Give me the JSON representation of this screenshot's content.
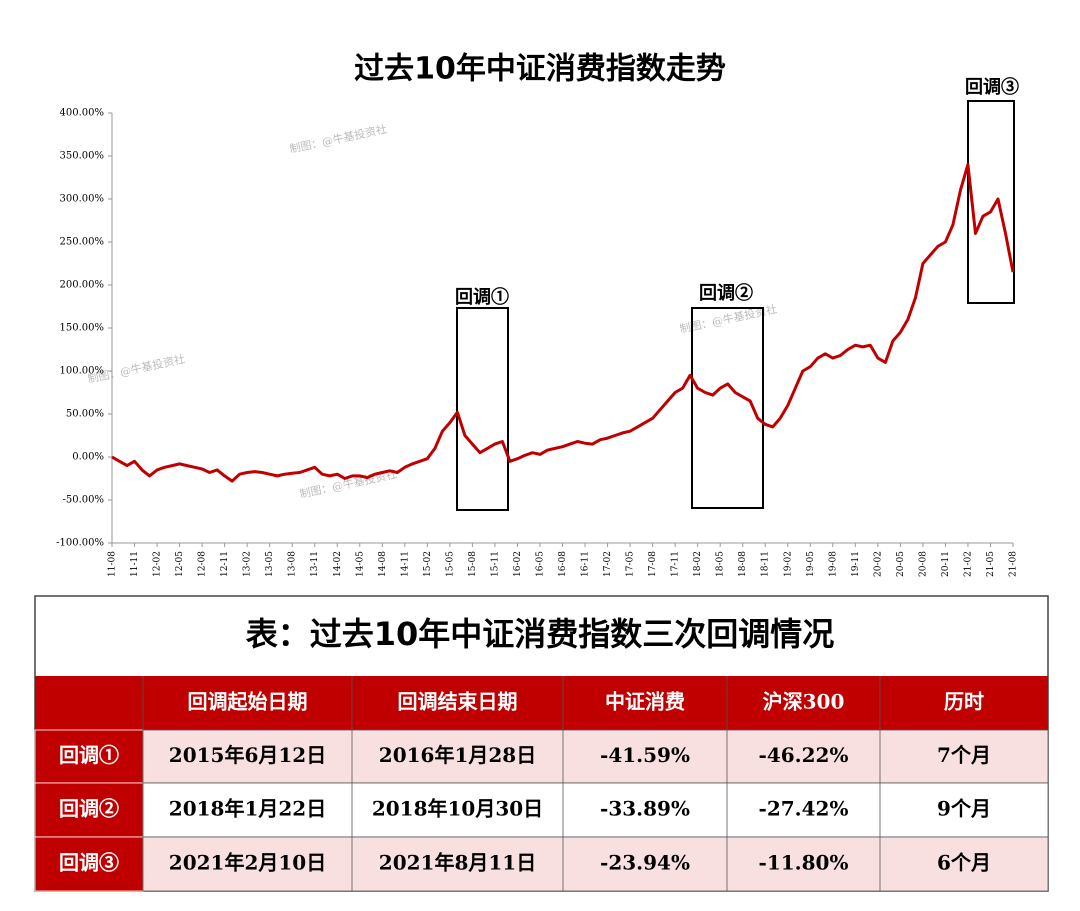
{
  "chart_data": {
    "type": "line",
    "title": "过去10年中证消费指数走势",
    "categories": [
      "11-08",
      null,
      null,
      "11-11",
      null,
      null,
      "12-02",
      null,
      null,
      "12-05",
      null,
      null,
      "12-08",
      null,
      null,
      "12-11",
      null,
      null,
      "13-02",
      null,
      null,
      "13-05",
      null,
      null,
      "13-08",
      null,
      null,
      "13-11",
      null,
      null,
      "14-02",
      null,
      null,
      "14-05",
      null,
      null,
      "14-08",
      null,
      null,
      "14-11",
      null,
      null,
      "15-02",
      null,
      null,
      "15-05",
      null,
      null,
      "15-08",
      null,
      null,
      "15-11",
      null,
      null,
      "16-02",
      null,
      null,
      "16-05",
      null,
      null,
      "16-08",
      null,
      null,
      "16-11",
      null,
      null,
      "17-02",
      null,
      null,
      "17-05",
      null,
      null,
      "17-08",
      null,
      null,
      "17-11",
      null,
      null,
      "18-02",
      null,
      null,
      "18-05",
      null,
      null,
      "18-08",
      null,
      null,
      "18-11",
      null,
      null,
      "19-02",
      null,
      null,
      "19-05",
      null,
      null,
      "19-08",
      null,
      null,
      "19-11",
      null,
      null,
      "20-02",
      null,
      null,
      "20-05",
      null,
      null,
      "20-08",
      null,
      null,
      "20-11",
      null,
      null,
      "21-02",
      null,
      null,
      "21-05",
      null,
      null,
      "21-08"
    ],
    "series": [
      {
        "color": "#c00000",
        "values": [
          0,
          -5,
          -10,
          -5,
          -15,
          -22,
          -15,
          -12,
          -10,
          -8,
          -10,
          -12,
          -14,
          -18,
          -15,
          -22,
          -28,
          -20,
          -18,
          -17,
          -18,
          -20,
          -22,
          -20,
          -19,
          -18,
          -15,
          -12,
          -20,
          -22,
          -20,
          -25,
          -22,
          -22,
          -24,
          -20,
          -18,
          -16,
          -18,
          -12,
          -8,
          -5,
          -2,
          10,
          30,
          40,
          52,
          25,
          15,
          5,
          10,
          15,
          18,
          -5,
          -2,
          2,
          5,
          3,
          8,
          10,
          12,
          15,
          18,
          16,
          15,
          20,
          22,
          25,
          28,
          30,
          35,
          40,
          45,
          55,
          65,
          75,
          80,
          95,
          80,
          75,
          72,
          80,
          85,
          75,
          70,
          65,
          45,
          38,
          35,
          45,
          60,
          80,
          100,
          105,
          115,
          120,
          115,
          118,
          125,
          130,
          128,
          130,
          115,
          110,
          135,
          145,
          160,
          185,
          225,
          235,
          245,
          250,
          270,
          310,
          340,
          260,
          280,
          285,
          300,
          260,
          215
        ]
      }
    ],
    "ylim": [
      -100,
      400
    ],
    "yticks": [
      {
        "value": -100,
        "label": "-100.00%"
      },
      {
        "value": -50,
        "label": "-50.00%"
      },
      {
        "value": 0,
        "label": "0.00%"
      },
      {
        "value": 50,
        "label": "50.00%"
      },
      {
        "value": 100,
        "label": "100.00%"
      },
      {
        "value": 150,
        "label": "150.00%"
      },
      {
        "value": 200,
        "label": "200.00%"
      },
      {
        "value": 250,
        "label": "250.00%"
      },
      {
        "value": 300,
        "label": "300.00%"
      },
      {
        "value": 350,
        "label": "350.00%"
      },
      {
        "value": 400,
        "label": "400.00%"
      }
    ],
    "annotations": [
      "回调①",
      "回调②",
      "回调③"
    ]
  },
  "watermark": "制图：@牛基投资社",
  "table": {
    "title": "表：过去10年中证消费指数三次回调情况",
    "header": [
      "回调起始日期",
      "回调结束日期",
      "中证消费",
      "沪深300",
      "历时"
    ],
    "rows": [
      [
        "回调①",
        "2015年6月12日",
        "2016年1月28日",
        "-41.59%",
        "-46.22%",
        "7个月"
      ],
      [
        "回调②",
        "2018年1月22日",
        "2018年10月30日",
        "-33.89%",
        "-27.42%",
        "9个月"
      ],
      [
        "回调③",
        "2021年2月10日",
        "2021年8月11日",
        "-23.94%",
        "-11.80%",
        "6个月"
      ]
    ]
  }
}
